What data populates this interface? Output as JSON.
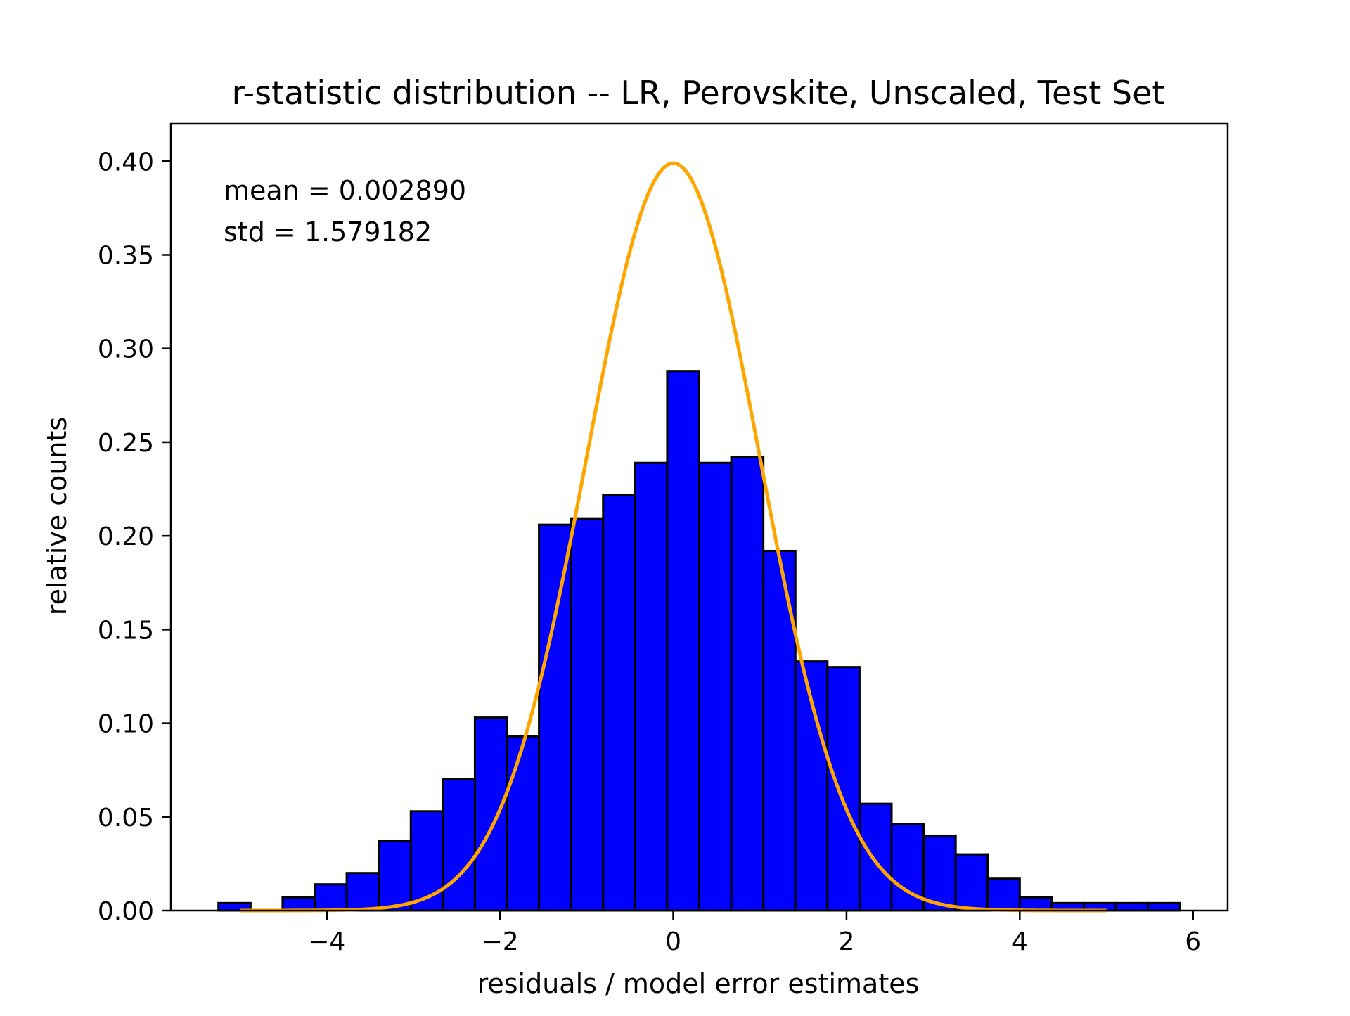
{
  "chart_data": {
    "type": "bar",
    "title": "r-statistic distribution -- LR, Perovskite, Unscaled, Test Set",
    "xlabel": "residuals / model error estimates",
    "ylabel": "relative counts",
    "xlim": [
      -5.8,
      6.4
    ],
    "ylim": [
      0,
      0.42
    ],
    "xticks": [
      -4,
      -2,
      0,
      2,
      4,
      6
    ],
    "xtick_labels": [
      "−4",
      "−2",
      "0",
      "2",
      "4",
      "6"
    ],
    "yticks": [
      0,
      0.05,
      0.1,
      0.15,
      0.2,
      0.25,
      0.3,
      0.35,
      0.4
    ],
    "ytick_labels": [
      "0.00",
      "0.05",
      "0.10",
      "0.15",
      "0.20",
      "0.25",
      "0.30",
      "0.35",
      "0.40"
    ],
    "annotations": [
      "mean = 0.002890",
      "std = 1.579182"
    ],
    "grid": false,
    "histogram": {
      "bar_color": "#0000ff",
      "edge_color": "#000000",
      "bin_edges": [
        -5.25,
        -4.88,
        -4.51,
        -4.14,
        -3.77,
        -3.4,
        -3.03,
        -2.66,
        -2.29,
        -1.92,
        -1.55,
        -1.18,
        -0.81,
        -0.44,
        -0.07,
        0.3,
        0.67,
        1.04,
        1.41,
        1.78,
        2.15,
        2.52,
        2.89,
        3.26,
        3.63,
        4.0,
        4.37,
        4.74,
        5.11,
        5.48,
        5.85
      ],
      "values": [
        0.004,
        0.0,
        0.007,
        0.014,
        0.02,
        0.037,
        0.053,
        0.07,
        0.103,
        0.093,
        0.206,
        0.209,
        0.222,
        0.239,
        0.288,
        0.239,
        0.242,
        0.192,
        0.133,
        0.13,
        0.057,
        0.046,
        0.04,
        0.03,
        0.017,
        0.007,
        0.004,
        0.004,
        0.004,
        0.004
      ]
    },
    "curve": {
      "type": "normal-pdf",
      "mean": 0,
      "std": 1,
      "x_range": [
        -5,
        5
      ],
      "color": "#ffa500"
    }
  }
}
